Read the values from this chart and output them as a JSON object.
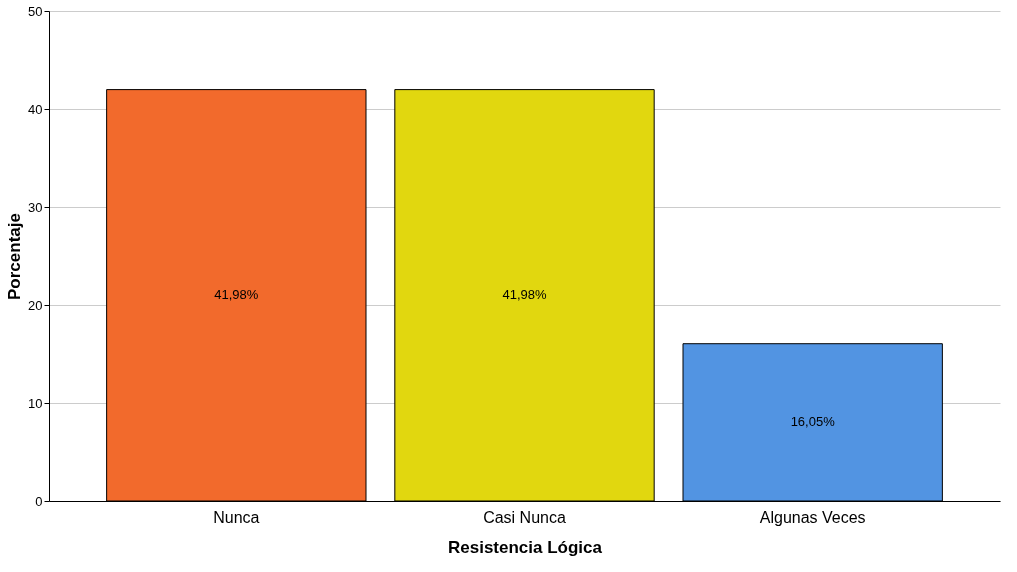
{
  "chart_data": {
    "type": "bar",
    "xlabel": "Resistencia Lógica",
    "ylabel": "Porcentaje",
    "categories": [
      "Nunca",
      "Casi Nunca",
      "Algunas Veces"
    ],
    "values": [
      41.98,
      41.98,
      16.05
    ],
    "colors": [
      "#f26a2c",
      "#e1d70f",
      "#5294e2"
    ],
    "value_labels": [
      "41,98%",
      "41,98%",
      "16,05%"
    ],
    "ylim": [
      0,
      50
    ],
    "yticks": [
      0,
      10,
      20,
      30,
      40,
      50
    ],
    "grid": "y"
  }
}
